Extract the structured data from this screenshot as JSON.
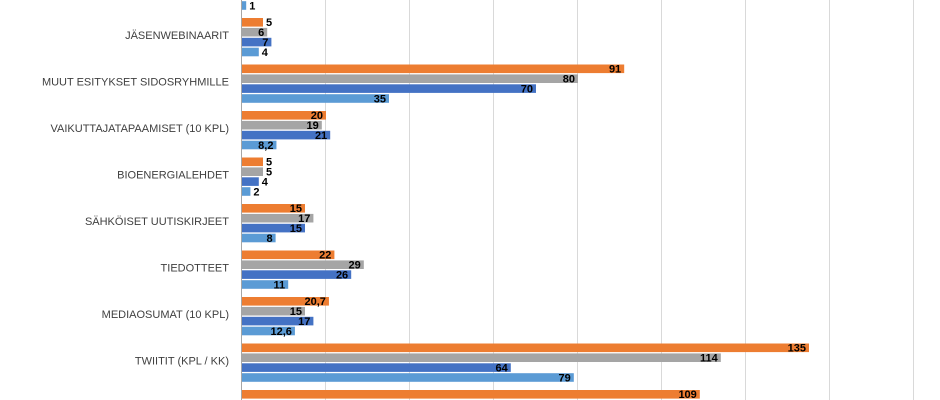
{
  "chart_data": {
    "type": "bar",
    "orientation": "horizontal",
    "categories": [
      "",
      "JÄSENWEBINAARIT",
      "MUUT ESITYKSET SIDOSRYHMILLE",
      "VAIKUTTAJATAPAAMISET (10 KPL)",
      "BIOENERGIALEHDET",
      "SÄHKÖISET UUTISKIRJEET",
      "TIEDOTTEET",
      "MEDIAOSUMAT (10 KPL)",
      "TWIITIT (KPL / KK)",
      ""
    ],
    "series": [
      {
        "color": "#ED7D31",
        "values": [
          null,
          5,
          91,
          20,
          5,
          15,
          22,
          20.7,
          135,
          109
        ]
      },
      {
        "color": "#A5A5A5",
        "values": [
          null,
          6,
          80,
          19,
          5,
          17,
          29,
          15,
          114,
          null
        ]
      },
      {
        "color": "#4472C4",
        "values": [
          null,
          7,
          70,
          21,
          4,
          15,
          26,
          17,
          64,
          null
        ]
      },
      {
        "color": "#5B9BD5",
        "values": [
          1,
          4,
          35,
          8.2,
          2,
          8,
          11,
          12.6,
          79,
          null
        ]
      }
    ],
    "data_labels": [
      [
        null,
        "5",
        "91",
        "20",
        "5",
        "15",
        "22",
        "20,7",
        "135",
        "109"
      ],
      [
        null,
        "6",
        "80",
        "19",
        "5",
        "17",
        "29",
        "15",
        "114",
        null
      ],
      [
        null,
        "7",
        "70",
        "21",
        "4",
        "15",
        "26",
        "17",
        "64",
        null
      ],
      [
        "1",
        "4",
        "35",
        "8,2",
        "2",
        "8",
        "11",
        "12,6",
        "79",
        null
      ]
    ],
    "xlim": [
      0,
      160
    ],
    "x_gridline_step": 20,
    "grid": true,
    "legend": "none",
    "gridline_color": "#D9D9D9"
  }
}
